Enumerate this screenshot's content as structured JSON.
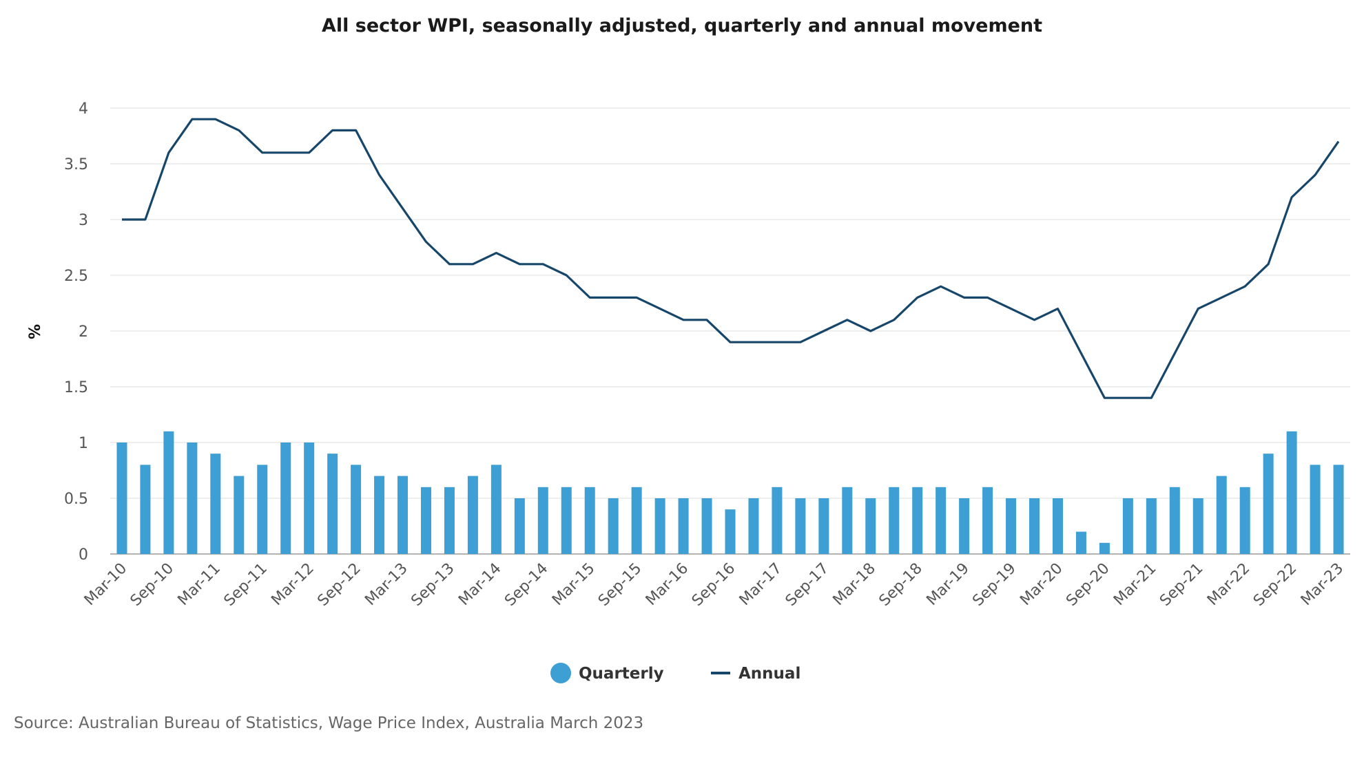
{
  "chart_data": {
    "type": "bar+line",
    "title": "All sector WPI, seasonally adjusted, quarterly and annual movement",
    "ylabel": "%",
    "xlabel": "",
    "ylim": [
      0,
      4
    ],
    "yticks": [
      0,
      0.5,
      1,
      1.5,
      2,
      2.5,
      3,
      3.5,
      4
    ],
    "ytick_labels": [
      "0",
      "0.5",
      "1",
      "1.5",
      "2",
      "2.5",
      "3",
      "3.5",
      "4"
    ],
    "categories": [
      "Mar-10",
      "Jun-10",
      "Sep-10",
      "Dec-10",
      "Mar-11",
      "Jun-11",
      "Sep-11",
      "Dec-11",
      "Mar-12",
      "Jun-12",
      "Sep-12",
      "Dec-12",
      "Mar-13",
      "Jun-13",
      "Sep-13",
      "Dec-13",
      "Mar-14",
      "Jun-14",
      "Sep-14",
      "Dec-14",
      "Mar-15",
      "Jun-15",
      "Sep-15",
      "Dec-15",
      "Mar-16",
      "Jun-16",
      "Sep-16",
      "Dec-16",
      "Mar-17",
      "Jun-17",
      "Sep-17",
      "Dec-17",
      "Mar-18",
      "Jun-18",
      "Sep-18",
      "Dec-18",
      "Mar-19",
      "Jun-19",
      "Sep-19",
      "Dec-19",
      "Mar-20",
      "Jun-20",
      "Sep-20",
      "Dec-20",
      "Mar-21",
      "Jun-21",
      "Sep-21",
      "Dec-21",
      "Mar-22",
      "Jun-22",
      "Sep-22",
      "Dec-22",
      "Mar-23"
    ],
    "xtick_labels": [
      "Mar-10",
      "Sep-10",
      "Mar-11",
      "Sep-11",
      "Mar-12",
      "Sep-12",
      "Mar-13",
      "Sep-13",
      "Mar-14",
      "Sep-14",
      "Mar-15",
      "Sep-15",
      "Mar-16",
      "Sep-16",
      "Mar-17",
      "Sep-17",
      "Mar-18",
      "Sep-18",
      "Mar-19",
      "Sep-19",
      "Mar-20",
      "Sep-20",
      "Mar-21",
      "Sep-21",
      "Mar-22",
      "Sep-22",
      "Mar-23"
    ],
    "series": [
      {
        "name": "Quarterly",
        "type": "bar",
        "color": "#3d9fd4",
        "values": [
          1.0,
          0.8,
          1.1,
          1.0,
          0.9,
          0.7,
          0.8,
          1.0,
          1.0,
          0.9,
          0.8,
          0.7,
          0.7,
          0.6,
          0.6,
          0.7,
          0.8,
          0.5,
          0.6,
          0.6,
          0.6,
          0.5,
          0.6,
          0.5,
          0.5,
          0.5,
          0.4,
          0.5,
          0.6,
          0.5,
          0.5,
          0.6,
          0.5,
          0.6,
          0.6,
          0.6,
          0.5,
          0.6,
          0.5,
          0.5,
          0.5,
          0.2,
          0.1,
          0.5,
          0.5,
          0.6,
          0.5,
          0.7,
          0.6,
          0.9,
          1.1,
          0.8,
          0.8
        ]
      },
      {
        "name": "Annual",
        "type": "line",
        "color": "#17466b",
        "values": [
          3.0,
          3.0,
          3.6,
          3.9,
          3.9,
          3.8,
          3.6,
          3.6,
          3.6,
          3.8,
          3.8,
          3.4,
          3.1,
          2.8,
          2.6,
          2.6,
          2.7,
          2.6,
          2.6,
          2.5,
          2.3,
          2.3,
          2.3,
          2.2,
          2.1,
          2.1,
          1.9,
          1.9,
          1.9,
          1.9,
          2.0,
          2.1,
          2.0,
          2.1,
          2.3,
          2.4,
          2.3,
          2.3,
          2.2,
          2.1,
          2.2,
          1.8,
          1.4,
          1.4,
          1.4,
          1.8,
          2.2,
          2.3,
          2.4,
          2.6,
          3.2,
          3.4,
          3.7
        ]
      }
    ],
    "legend": {
      "position": "bottom",
      "items": [
        "Quarterly",
        "Annual"
      ]
    },
    "grid": true
  },
  "source": "Source: Australian Bureau of Statistics, Wage Price Index, Australia March 2023"
}
